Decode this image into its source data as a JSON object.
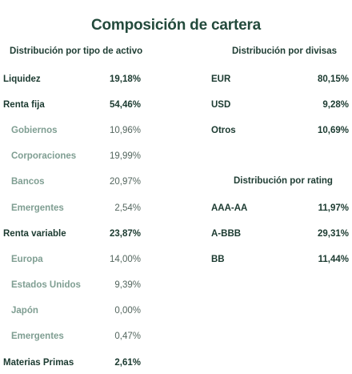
{
  "title": "Composición de cartera",
  "asset_type": {
    "heading": "Distribución por tipo de activo",
    "rows": [
      {
        "label": "Liquidez",
        "value": "19,18%",
        "kind": "main"
      },
      {
        "label": "Renta fija",
        "value": "54,46%",
        "kind": "main"
      },
      {
        "label": "Gobiernos",
        "value": "10,96%",
        "kind": "sub"
      },
      {
        "label": "Corporaciones",
        "value": "19,99%",
        "kind": "sub"
      },
      {
        "label": "Bancos",
        "value": "20,97%",
        "kind": "sub"
      },
      {
        "label": "Emergentes",
        "value": "2,54%",
        "kind": "sub"
      },
      {
        "label": "Renta variable",
        "value": "23,87%",
        "kind": "main"
      },
      {
        "label": "Europa",
        "value": "14,00%",
        "kind": "sub"
      },
      {
        "label": "Estados Unidos",
        "value": "9,39%",
        "kind": "sub"
      },
      {
        "label": "Japón",
        "value": "0,00%",
        "kind": "sub"
      },
      {
        "label": "Emergentes",
        "value": "0,47%",
        "kind": "sub"
      },
      {
        "label": "Materias Primas",
        "value": "2,61%",
        "kind": "main"
      }
    ]
  },
  "currency": {
    "heading": "Distribución por divisas",
    "rows": [
      {
        "label": "EUR",
        "value": "80,15%"
      },
      {
        "label": "USD",
        "value": "9,28%"
      },
      {
        "label": "Otros",
        "value": "10,69%"
      }
    ]
  },
  "rating": {
    "heading": "Distribución por rating",
    "rows": [
      {
        "label": "AAA-AA",
        "value": "11,97%"
      },
      {
        "label": "A-BBB",
        "value": "29,31%"
      },
      {
        "label": "BB",
        "value": "11,44%"
      }
    ]
  },
  "colors": {
    "title": "#234a3c",
    "main_text": "#1b3a30",
    "sub_label": "#7f9e92",
    "sub_value": "#54665f"
  }
}
